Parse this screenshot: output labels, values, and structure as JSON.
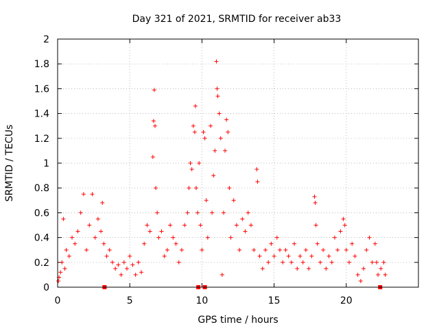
{
  "chart_data": {
    "type": "scatter",
    "title": "Day 321 of 2021, SRMTID for receiver ab33",
    "xlabel": "GPS time / hours",
    "ylabel": "SRMTID / TECUs",
    "xlim": [
      0,
      25
    ],
    "ylim": [
      0,
      2
    ],
    "x_ticks": [
      "0",
      "5",
      "10",
      "15",
      "20"
    ],
    "x_tick_values": [
      0,
      5,
      10,
      15,
      20
    ],
    "y_ticks": [
      "0",
      "0.2",
      "0.4",
      "0.6",
      "0.8",
      "1",
      "1.2",
      "1.4",
      "1.6",
      "1.8",
      "2"
    ],
    "y_tick_values": [
      0,
      0.2,
      0.4,
      0.6,
      0.8,
      1.0,
      1.2,
      1.4,
      1.6,
      1.8,
      2.0
    ],
    "grid": true,
    "marker": "+",
    "series_color": "#ff0000",
    "series": [
      {
        "name": "SRMTID",
        "x_range": [
          0.0,
          22.7
        ],
        "points": [
          [
            0.05,
            0.05
          ],
          [
            0.1,
            0.08
          ],
          [
            0.2,
            0.12
          ],
          [
            0.3,
            0.2
          ],
          [
            0.4,
            0.55
          ],
          [
            0.5,
            0.15
          ],
          [
            0.6,
            0.3
          ],
          [
            0.8,
            0.25
          ],
          [
            1.0,
            0.4
          ],
          [
            1.2,
            0.35
          ],
          [
            1.4,
            0.45
          ],
          [
            1.6,
            0.6
          ],
          [
            1.8,
            0.75
          ],
          [
            2.0,
            0.3
          ],
          [
            2.2,
            0.5
          ],
          [
            2.4,
            0.75
          ],
          [
            2.6,
            0.4
          ],
          [
            2.8,
            0.55
          ],
          [
            3.0,
            0.45
          ],
          [
            3.1,
            0.68
          ],
          [
            3.2,
            0.35
          ],
          [
            3.4,
            0.25
          ],
          [
            3.6,
            0.3
          ],
          [
            3.8,
            0.2
          ],
          [
            4.0,
            0.15
          ],
          [
            4.2,
            0.18
          ],
          [
            4.4,
            0.1
          ],
          [
            4.6,
            0.2
          ],
          [
            4.8,
            0.15
          ],
          [
            5.0,
            0.25
          ],
          [
            5.2,
            0.18
          ],
          [
            5.4,
            0.1
          ],
          [
            5.6,
            0.2
          ],
          [
            5.8,
            0.12
          ],
          [
            6.0,
            0.35
          ],
          [
            6.2,
            0.5
          ],
          [
            6.4,
            0.45
          ],
          [
            6.6,
            1.05
          ],
          [
            6.65,
            1.34
          ],
          [
            6.7,
            1.59
          ],
          [
            6.75,
            1.3
          ],
          [
            6.8,
            0.8
          ],
          [
            6.9,
            0.6
          ],
          [
            7.0,
            0.4
          ],
          [
            7.2,
            0.45
          ],
          [
            7.4,
            0.25
          ],
          [
            7.6,
            0.3
          ],
          [
            7.8,
            0.5
          ],
          [
            8.0,
            0.4
          ],
          [
            8.2,
            0.35
          ],
          [
            8.4,
            0.2
          ],
          [
            8.6,
            0.3
          ],
          [
            8.8,
            0.5
          ],
          [
            9.0,
            0.6
          ],
          [
            9.1,
            0.8
          ],
          [
            9.2,
            1.0
          ],
          [
            9.3,
            0.95
          ],
          [
            9.4,
            1.3
          ],
          [
            9.5,
            1.25
          ],
          [
            9.55,
            1.46
          ],
          [
            9.6,
            0.8
          ],
          [
            9.7,
            0.6
          ],
          [
            9.8,
            1.0
          ],
          [
            9.9,
            0.5
          ],
          [
            10.0,
            0.3
          ],
          [
            10.1,
            1.25
          ],
          [
            10.2,
            1.2
          ],
          [
            10.3,
            0.7
          ],
          [
            10.4,
            0.4
          ],
          [
            10.6,
            1.3
          ],
          [
            10.7,
            0.6
          ],
          [
            10.8,
            0.9
          ],
          [
            10.9,
            1.1
          ],
          [
            11.0,
            1.82
          ],
          [
            11.05,
            1.6
          ],
          [
            11.1,
            1.54
          ],
          [
            11.2,
            1.4
          ],
          [
            11.3,
            1.2
          ],
          [
            11.4,
            0.1
          ],
          [
            11.5,
            0.6
          ],
          [
            11.6,
            1.1
          ],
          [
            11.7,
            1.35
          ],
          [
            11.8,
            1.25
          ],
          [
            11.9,
            0.8
          ],
          [
            12.0,
            0.4
          ],
          [
            12.2,
            0.7
          ],
          [
            12.4,
            0.5
          ],
          [
            12.6,
            0.3
          ],
          [
            12.8,
            0.55
          ],
          [
            13.0,
            0.45
          ],
          [
            13.2,
            0.6
          ],
          [
            13.4,
            0.5
          ],
          [
            13.6,
            0.3
          ],
          [
            13.8,
            0.95
          ],
          [
            13.85,
            0.85
          ],
          [
            14.0,
            0.25
          ],
          [
            14.2,
            0.15
          ],
          [
            14.4,
            0.3
          ],
          [
            14.6,
            0.2
          ],
          [
            14.8,
            0.35
          ],
          [
            15.0,
            0.25
          ],
          [
            15.2,
            0.4
          ],
          [
            15.4,
            0.3
          ],
          [
            15.6,
            0.2
          ],
          [
            15.8,
            0.3
          ],
          [
            16.0,
            0.25
          ],
          [
            16.2,
            0.2
          ],
          [
            16.4,
            0.35
          ],
          [
            16.6,
            0.15
          ],
          [
            16.8,
            0.25
          ],
          [
            17.0,
            0.2
          ],
          [
            17.2,
            0.3
          ],
          [
            17.4,
            0.15
          ],
          [
            17.6,
            0.25
          ],
          [
            17.8,
            0.73
          ],
          [
            17.85,
            0.68
          ],
          [
            17.9,
            0.5
          ],
          [
            18.0,
            0.35
          ],
          [
            18.2,
            0.2
          ],
          [
            18.4,
            0.3
          ],
          [
            18.6,
            0.15
          ],
          [
            18.8,
            0.25
          ],
          [
            19.0,
            0.2
          ],
          [
            19.2,
            0.4
          ],
          [
            19.4,
            0.3
          ],
          [
            19.6,
            0.45
          ],
          [
            19.8,
            0.55
          ],
          [
            19.9,
            0.5
          ],
          [
            20.0,
            0.3
          ],
          [
            20.2,
            0.2
          ],
          [
            20.4,
            0.35
          ],
          [
            20.6,
            0.25
          ],
          [
            20.8,
            0.1
          ],
          [
            21.0,
            0.05
          ],
          [
            21.2,
            0.15
          ],
          [
            21.4,
            0.3
          ],
          [
            21.6,
            0.4
          ],
          [
            21.8,
            0.2
          ],
          [
            22.0,
            0.35
          ],
          [
            22.1,
            0.2
          ],
          [
            22.2,
            0.1
          ],
          [
            22.4,
            0.15
          ],
          [
            22.6,
            0.2
          ],
          [
            22.7,
            0.1
          ]
        ]
      }
    ],
    "gap_markers_x": [
      3.25,
      9.75,
      10.2,
      22.35
    ]
  }
}
